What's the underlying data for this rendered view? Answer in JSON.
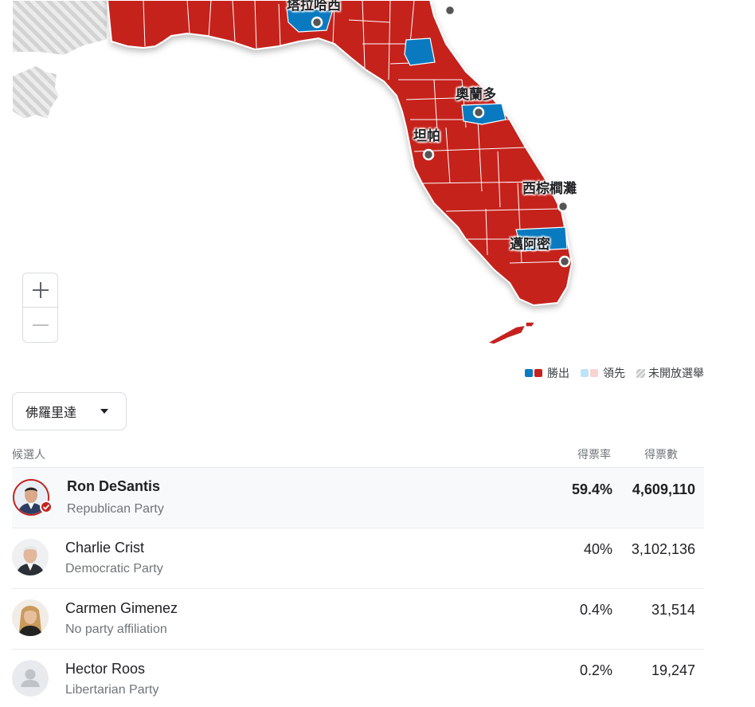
{
  "map": {
    "cities": [
      {
        "id": "tallahassee",
        "label": "塔拉哈西"
      },
      {
        "id": "orlando",
        "label": "奧蘭多"
      },
      {
        "id": "tampa",
        "label": "坦帕"
      },
      {
        "id": "west-palm-beach",
        "label": "西棕櫚灘"
      },
      {
        "id": "miami",
        "label": "邁阿密"
      }
    ],
    "zoom_in_icon": "plus-icon",
    "zoom_out_icon": "minus-icon"
  },
  "legend": {
    "won": "勝出",
    "leading": "領先",
    "not_open": "未開放選舉"
  },
  "colors": {
    "republican": "#c5221f",
    "democrat": "#1a73e8",
    "dem_map": "#0a7ac0",
    "rep_light": "#fad2cf",
    "dem_light": "#bde3f7",
    "no_election": "#d5d5d5"
  },
  "state_selector": {
    "value": "佛羅里達"
  },
  "table": {
    "headers": {
      "candidate": "候選人",
      "pct": "得票率",
      "votes": "得票數"
    },
    "rows": [
      {
        "name": "Ron DeSantis",
        "party": "Republican Party",
        "pct": "59.4%",
        "votes": "4,609,110",
        "winner": true
      },
      {
        "name": "Charlie Crist",
        "party": "Democratic Party",
        "pct": "40%",
        "votes": "3,102,136",
        "winner": false
      },
      {
        "name": "Carmen Gimenez",
        "party": "No party affiliation",
        "pct": "0.4%",
        "votes": "31,514",
        "winner": false
      },
      {
        "name": "Hector Roos",
        "party": "Libertarian Party",
        "pct": "0.2%",
        "votes": "19,247",
        "winner": false
      }
    ]
  }
}
